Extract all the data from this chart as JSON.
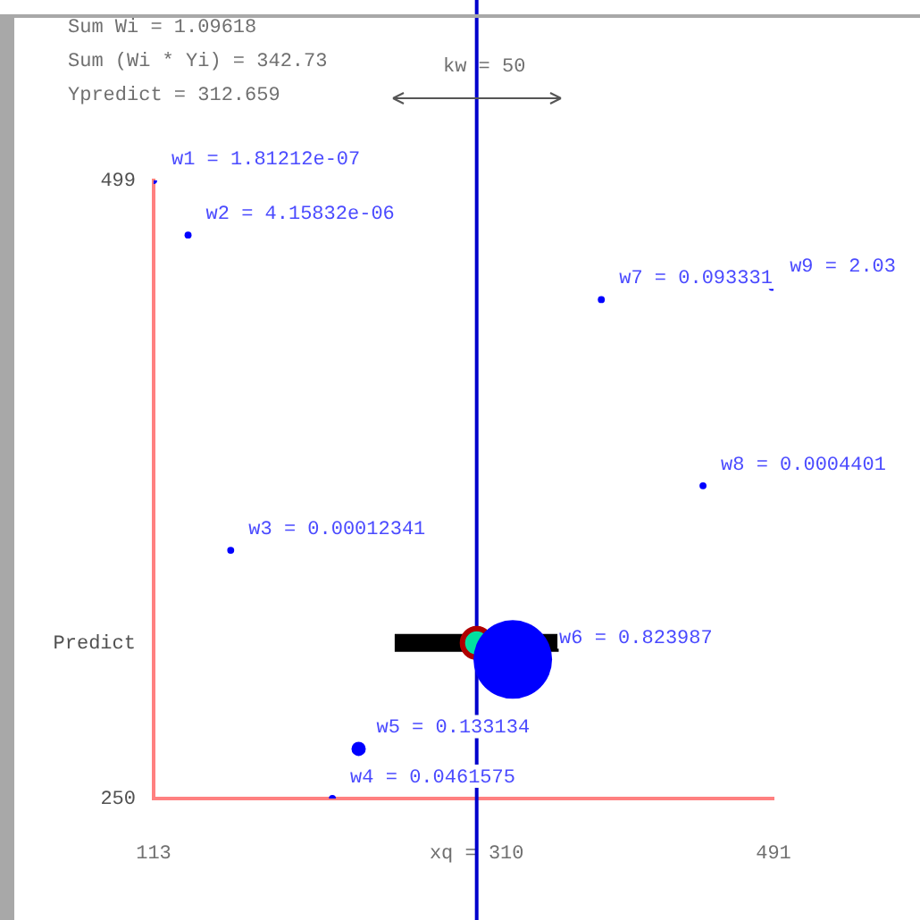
{
  "chart_data": {
    "type": "bubble",
    "annotations": [
      "Sum Wi = 1.09618",
      "Sum (Wi * Yi) = 342.73",
      "Ypredict = 312.659",
      "kw = 50",
      {
        "text": "w1 = 1.81212e-07",
        "x": 113,
        "y": 499
      },
      {
        "text": "w2 = 4.15832e-06",
        "x": 134,
        "y": 477
      },
      {
        "text": "w3 = 0.00012341",
        "x": 160,
        "y": 350
      },
      {
        "text": "w4 = 0.0461575",
        "x": 222,
        "y": 250
      },
      {
        "text": "w5 = 0.133134",
        "x": 238,
        "y": 270
      },
      {
        "text": "w6 = 0.823987",
        "x": 332,
        "y": 306
      },
      {
        "text": "w7 = 0.093331",
        "x": 386,
        "y": 451
      },
      {
        "text": "w8 = 0.0004401",
        "x": 448,
        "y": 376
      },
      {
        "text": "w9 = 2.03",
        "x": 490,
        "y": 456
      }
    ],
    "series": [
      {
        "type": "bubble",
        "color": "#0000ff",
        "x": [
          113,
          134,
          160,
          222,
          238,
          332,
          386,
          448,
          490
        ],
        "values": [
          499,
          477,
          350,
          250,
          270,
          306,
          451,
          376,
          456
        ],
        "sizes": [
          0.008,
          0.008,
          0.008,
          0.008,
          0.033,
          1,
          0.008,
          0.008,
          0.008
        ]
      },
      {
        "type": "scatter",
        "color": "#00e0a0",
        "x": [
          310
        ],
        "values": [
          312.659
        ],
        "xerrors": [
          50
        ]
      }
    ],
    "xlim": [
      113,
      491
    ],
    "xticks": [
      113,
      {
        "value": 310,
        "label": "xq = 310"
      },
      491
    ],
    "ylim": [
      250,
      499
    ],
    "yticks": [
      250,
      {
        "value": 312.659,
        "label": "Predict"
      },
      499
    ],
    "ref_lines": [
      {
        "axis": "x",
        "value": 310,
        "color": "#0000cc"
      }
    ],
    "grid": false,
    "legend": false
  }
}
